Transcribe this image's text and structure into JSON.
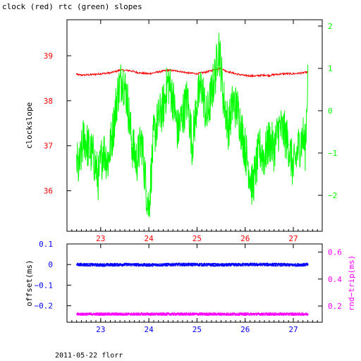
{
  "title": "clock (red) rtc (green) slopes",
  "footer": "2011-05-22 florr",
  "colors": {
    "red": "#ff0000",
    "green": "#00ff00",
    "blue": "#0000ff",
    "magenta": "#ff00ff",
    "axis": "#000000"
  },
  "chart_data": [
    {
      "type": "line",
      "title": "clock (red) rtc (green) slopes",
      "xlabel": "",
      "ylabel": "clockslope",
      "y2label": "",
      "xlim": [
        22.3,
        27.6
      ],
      "ylim": [
        35.1,
        39.8
      ],
      "y2lim": [
        -2.85,
        2.15
      ],
      "x_ticks": [
        23,
        24,
        25,
        26,
        27
      ],
      "y_ticks": [
        36,
        37,
        38,
        39
      ],
      "y2_ticks": [
        -2,
        -1,
        0,
        1,
        2
      ],
      "y2_tick_labels": [
        "−2",
        "−1",
        "0",
        "1",
        "2"
      ],
      "grid": false,
      "series": [
        {
          "name": "clock",
          "axis": "left",
          "color": "#ff0000",
          "x": [
            22.5,
            22.52,
            22.6,
            22.8,
            23.0,
            23.2,
            23.4,
            23.6,
            23.8,
            24.0,
            24.2,
            24.4,
            24.6,
            24.8,
            25.0,
            25.2,
            25.4,
            25.5,
            25.6,
            25.8,
            26.0,
            26.2,
            26.4,
            26.5,
            26.6,
            26.8,
            27.0,
            27.2,
            27.3
          ],
          "y": [
            38.6,
            38.58,
            38.57,
            38.58,
            38.6,
            38.62,
            38.68,
            38.67,
            38.62,
            38.6,
            38.64,
            38.68,
            38.66,
            38.62,
            38.6,
            38.64,
            38.7,
            38.72,
            38.66,
            38.6,
            38.56,
            38.55,
            38.57,
            38.56,
            38.58,
            38.6,
            38.6,
            38.62,
            38.64
          ]
        },
        {
          "name": "rtc",
          "axis": "right",
          "color": "#00ff00",
          "x": [
            22.5,
            22.55,
            22.65,
            22.75,
            22.85,
            22.95,
            23.05,
            23.15,
            23.25,
            23.35,
            23.45,
            23.55,
            23.65,
            23.75,
            23.85,
            23.95,
            24.0,
            24.1,
            24.2,
            24.3,
            24.4,
            24.5,
            24.6,
            24.7,
            24.8,
            24.9,
            25.0,
            25.1,
            25.2,
            25.3,
            25.4,
            25.45,
            25.55,
            25.65,
            25.75,
            25.85,
            25.95,
            26.05,
            26.15,
            26.2,
            26.3,
            26.4,
            26.5,
            26.6,
            26.7,
            26.8,
            26.9,
            27.0,
            27.1,
            27.2,
            27.25,
            27.3
          ],
          "y": [
            -1.2,
            -1.4,
            -0.6,
            -0.9,
            -1.1,
            -1.6,
            -0.9,
            -1.2,
            -0.5,
            0.4,
            0.8,
            0.3,
            -0.8,
            -1.2,
            -0.7,
            -1.9,
            -2.3,
            -0.6,
            -0.2,
            0.1,
            0.7,
            0.3,
            -0.5,
            -0.1,
            0.3,
            -0.8,
            0.2,
            0.6,
            -0.2,
            0.4,
            1.0,
            1.6,
            0.3,
            -0.4,
            0.2,
            0.0,
            -0.6,
            -1.2,
            -1.8,
            -1.5,
            -0.9,
            -1.1,
            -0.7,
            -0.9,
            -0.4,
            -0.5,
            -0.8,
            -1.4,
            -0.9,
            -0.6,
            -0.9,
            0.8
          ]
        }
      ]
    },
    {
      "type": "scatter",
      "title": "",
      "xlabel": "",
      "ylabel": "offset(ms)",
      "y2label": "rnd−trip(ms)",
      "xlim": [
        22.3,
        27.6
      ],
      "ylim": [
        -0.28,
        0.1
      ],
      "y2lim": [
        0.08,
        0.66
      ],
      "x_ticks": [
        23,
        24,
        25,
        26,
        27
      ],
      "y_ticks": [
        0.1,
        0,
        -0.1,
        -0.2
      ],
      "y_tick_labels": [
        "0.1",
        "0",
        "−0.1",
        "−0.2"
      ],
      "y2_ticks": [
        0.2,
        0.4,
        0.6
      ],
      "y2_tick_labels": [
        "0.2",
        "0.4",
        "0.6"
      ],
      "grid": false,
      "series": [
        {
          "name": "offset",
          "axis": "left",
          "color": "#0000ff",
          "x": [
            22.5,
            23.0,
            23.5,
            24.0,
            24.5,
            25.0,
            25.5,
            26.0,
            26.5,
            27.0,
            27.3
          ],
          "y": [
            0.0,
            -0.002,
            0.0,
            -0.002,
            0.0,
            0.0,
            -0.002,
            0.0,
            0.0,
            -0.002,
            0.0
          ]
        },
        {
          "name": "round-trip",
          "axis": "right",
          "color": "#ff00ff",
          "x": [
            22.5,
            23.0,
            23.5,
            24.0,
            24.5,
            25.0,
            25.5,
            26.0,
            26.5,
            27.0,
            27.3
          ],
          "y": [
            0.14,
            0.14,
            0.14,
            0.14,
            0.14,
            0.14,
            0.14,
            0.14,
            0.14,
            0.14,
            0.14
          ]
        }
      ]
    }
  ]
}
